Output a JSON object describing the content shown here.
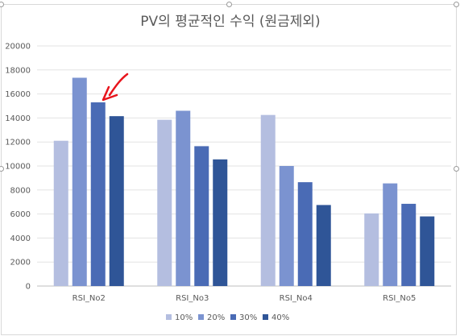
{
  "chart_data": {
    "type": "bar",
    "title": "PV의 평균적인 수익 (원금제외)",
    "categories": [
      "RSI_No2",
      "RSI_No3",
      "RSI_No4",
      "RSI_No5"
    ],
    "series": [
      {
        "name": "10%",
        "values": [
          12100,
          13850,
          14250,
          6050
        ],
        "color": "#b4bee0"
      },
      {
        "name": "20%",
        "values": [
          17350,
          14600,
          10000,
          8550
        ],
        "color": "#7b93d0"
      },
      {
        "name": "30%",
        "values": [
          15300,
          11650,
          8650,
          6850
        ],
        "color": "#4a6bb5"
      },
      {
        "name": "40%",
        "values": [
          14150,
          10550,
          6750,
          5800
        ],
        "color": "#2f5597"
      }
    ],
    "ylim": [
      0,
      20000
    ],
    "yticks": [
      "0",
      "2000",
      "4000",
      "6000",
      "8000",
      "10000",
      "12000",
      "14000",
      "16000",
      "18000",
      "20000"
    ],
    "grid": true,
    "legend_position": "bottom",
    "annotation": {
      "type": "red-arrow",
      "points_to": "RSI_No2 30%",
      "color": "#e8141c"
    }
  }
}
